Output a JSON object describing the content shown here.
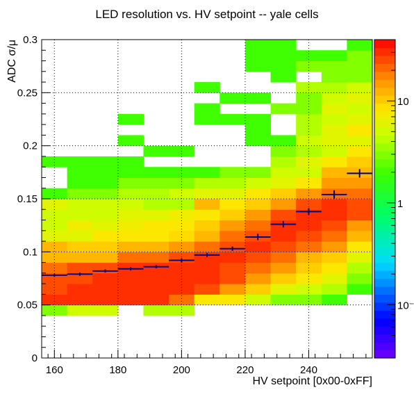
{
  "chart_data": {
    "type": "heatmap",
    "title": "LED resolution vs. HV setpoint -- yale cells",
    "xlabel": "HV setpoint [0x00-0xFF]",
    "ylabel": "ADC σ/μ",
    "xlim": [
      156,
      260
    ],
    "ylim": [
      0,
      0.3
    ],
    "x_ticks": [
      160,
      180,
      200,
      220,
      240
    ],
    "y_ticks": [
      0,
      0.05,
      0.1,
      0.15,
      0.2,
      0.25,
      0.3
    ],
    "grid": true,
    "colorbar": {
      "scale": "log",
      "range": [
        0.03,
        40
      ],
      "tick_labels": [
        "10⁻¹",
        "1",
        "10"
      ],
      "tick_values": [
        0.1,
        1,
        10
      ]
    },
    "bin_x_edges": [
      156,
      164,
      172,
      180,
      188,
      196,
      204,
      212,
      220,
      228,
      236,
      244,
      252,
      260
    ],
    "bin_y_width": 0.01,
    "cells": [
      {
        "col": 0,
        "cells": [
          [
            4,
            3
          ],
          [
            5,
            30
          ],
          [
            6,
            25
          ],
          [
            7,
            25
          ],
          [
            8,
            20
          ],
          [
            9,
            12
          ],
          [
            10,
            12
          ],
          [
            11,
            6
          ],
          [
            12,
            5
          ],
          [
            13,
            5
          ],
          [
            14,
            6
          ],
          [
            15,
            2
          ],
          [
            18,
            2
          ]
        ]
      },
      {
        "col": 1,
        "cells": [
          [
            4,
            5
          ],
          [
            5,
            30
          ],
          [
            6,
            30
          ],
          [
            7,
            25
          ],
          [
            8,
            25
          ],
          [
            9,
            12
          ],
          [
            10,
            10
          ],
          [
            11,
            6
          ],
          [
            12,
            7
          ],
          [
            13,
            5
          ],
          [
            14,
            5
          ],
          [
            15,
            3
          ],
          [
            16,
            2
          ],
          [
            17,
            2
          ],
          [
            18,
            2
          ]
        ]
      },
      {
        "col": 2,
        "cells": [
          [
            4,
            5
          ],
          [
            5,
            30
          ],
          [
            6,
            30
          ],
          [
            7,
            30
          ],
          [
            8,
            25
          ],
          [
            9,
            12
          ],
          [
            10,
            10
          ],
          [
            11,
            8
          ],
          [
            12,
            6
          ],
          [
            13,
            5
          ],
          [
            14,
            5
          ],
          [
            15,
            3
          ],
          [
            16,
            2
          ],
          [
            17,
            2
          ],
          [
            18,
            2
          ]
        ]
      },
      {
        "col": 3,
        "cells": [
          [
            5,
            30
          ],
          [
            6,
            30
          ],
          [
            7,
            30
          ],
          [
            8,
            30
          ],
          [
            9,
            20
          ],
          [
            10,
            12
          ],
          [
            11,
            8
          ],
          [
            12,
            7
          ],
          [
            13,
            6
          ],
          [
            14,
            5
          ],
          [
            15,
            4
          ],
          [
            16,
            3
          ],
          [
            17,
            2
          ],
          [
            18,
            2
          ],
          [
            20,
            2
          ],
          [
            22,
            2
          ]
        ]
      },
      {
        "col": 4,
        "cells": [
          [
            4,
            4
          ],
          [
            5,
            30
          ],
          [
            6,
            30
          ],
          [
            7,
            30
          ],
          [
            8,
            30
          ],
          [
            9,
            20
          ],
          [
            10,
            12
          ],
          [
            11,
            8
          ],
          [
            12,
            8
          ],
          [
            13,
            6
          ],
          [
            14,
            4
          ],
          [
            15,
            4
          ],
          [
            16,
            3
          ],
          [
            17,
            2
          ],
          [
            19,
            2
          ]
        ]
      },
      {
        "col": 5,
        "cells": [
          [
            4,
            4
          ],
          [
            5,
            20
          ],
          [
            6,
            30
          ],
          [
            7,
            30
          ],
          [
            8,
            30
          ],
          [
            9,
            25
          ],
          [
            10,
            15
          ],
          [
            11,
            9
          ],
          [
            12,
            8
          ],
          [
            13,
            7
          ],
          [
            14,
            4
          ],
          [
            15,
            5
          ],
          [
            16,
            3
          ],
          [
            17,
            2
          ],
          [
            19,
            2
          ]
        ]
      },
      {
        "col": 6,
        "cells": [
          [
            5,
            8
          ],
          [
            6,
            25
          ],
          [
            7,
            30
          ],
          [
            8,
            30
          ],
          [
            9,
            30
          ],
          [
            10,
            20
          ],
          [
            11,
            12
          ],
          [
            12,
            10
          ],
          [
            13,
            8
          ],
          [
            14,
            12
          ],
          [
            15,
            6
          ],
          [
            16,
            4
          ],
          [
            17,
            2
          ],
          [
            22,
            2
          ],
          [
            23,
            2
          ],
          [
            25,
            2
          ]
        ]
      },
      {
        "col": 7,
        "cells": [
          [
            5,
            8
          ],
          [
            6,
            15
          ],
          [
            7,
            25
          ],
          [
            8,
            25
          ],
          [
            9,
            30
          ],
          [
            10,
            25
          ],
          [
            11,
            20
          ],
          [
            12,
            15
          ],
          [
            13,
            10
          ],
          [
            14,
            8
          ],
          [
            15,
            6
          ],
          [
            16,
            4
          ],
          [
            17,
            3
          ],
          [
            22,
            2
          ],
          [
            24,
            2
          ]
        ]
      },
      {
        "col": 8,
        "cells": [
          [
            5,
            5
          ],
          [
            6,
            10
          ],
          [
            7,
            15
          ],
          [
            8,
            20
          ],
          [
            9,
            25
          ],
          [
            10,
            30
          ],
          [
            11,
            25
          ],
          [
            12,
            20
          ],
          [
            13,
            15
          ],
          [
            14,
            10
          ],
          [
            15,
            8
          ],
          [
            16,
            5
          ],
          [
            17,
            3
          ],
          [
            20,
            2
          ],
          [
            21,
            2
          ],
          [
            22,
            2
          ],
          [
            24,
            2
          ],
          [
            27,
            2
          ],
          [
            28,
            2
          ],
          [
            29,
            2
          ]
        ]
      },
      {
        "col": 9,
        "cells": [
          [
            5,
            3
          ],
          [
            6,
            6
          ],
          [
            7,
            10
          ],
          [
            8,
            15
          ],
          [
            9,
            20
          ],
          [
            10,
            25
          ],
          [
            11,
            30
          ],
          [
            12,
            30
          ],
          [
            13,
            25
          ],
          [
            14,
            15
          ],
          [
            15,
            10
          ],
          [
            16,
            6
          ],
          [
            17,
            5
          ],
          [
            18,
            4
          ],
          [
            19,
            3
          ],
          [
            20,
            2
          ],
          [
            23,
            3
          ],
          [
            26,
            2
          ],
          [
            27,
            2
          ],
          [
            28,
            2
          ],
          [
            29,
            2
          ]
        ]
      },
      {
        "col": 10,
        "cells": [
          [
            5,
            3
          ],
          [
            6,
            5
          ],
          [
            7,
            8
          ],
          [
            8,
            10
          ],
          [
            9,
            12
          ],
          [
            10,
            20
          ],
          [
            11,
            25
          ],
          [
            12,
            30
          ],
          [
            13,
            30
          ],
          [
            14,
            25
          ],
          [
            15,
            15
          ],
          [
            16,
            8
          ],
          [
            17,
            5
          ],
          [
            18,
            6
          ],
          [
            19,
            4
          ],
          [
            20,
            5
          ],
          [
            21,
            4
          ],
          [
            22,
            4
          ],
          [
            23,
            3
          ],
          [
            24,
            3
          ],
          [
            25,
            4
          ],
          [
            27,
            3
          ],
          [
            28,
            2
          ]
        ]
      },
      {
        "col": 11,
        "cells": [
          [
            5,
            2
          ],
          [
            6,
            4
          ],
          [
            7,
            6
          ],
          [
            8,
            8
          ],
          [
            9,
            10
          ],
          [
            10,
            15
          ],
          [
            11,
            20
          ],
          [
            12,
            25
          ],
          [
            13,
            30
          ],
          [
            14,
            30
          ],
          [
            15,
            20
          ],
          [
            16,
            15
          ],
          [
            17,
            12
          ],
          [
            18,
            8
          ],
          [
            19,
            5
          ],
          [
            20,
            6
          ],
          [
            21,
            6
          ],
          [
            22,
            5
          ],
          [
            23,
            6
          ],
          [
            24,
            5
          ],
          [
            25,
            4
          ],
          [
            26,
            3
          ],
          [
            27,
            3
          ],
          [
            28,
            2
          ]
        ]
      },
      {
        "col": 12,
        "cells": [
          [
            6,
            2
          ],
          [
            7,
            3
          ],
          [
            8,
            4
          ],
          [
            9,
            6
          ],
          [
            10,
            8
          ],
          [
            11,
            12
          ],
          [
            12,
            15
          ],
          [
            13,
            25
          ],
          [
            14,
            25
          ],
          [
            15,
            20
          ],
          [
            16,
            15
          ],
          [
            17,
            12
          ],
          [
            18,
            10
          ],
          [
            19,
            8
          ],
          [
            20,
            6
          ],
          [
            21,
            8
          ],
          [
            22,
            6
          ],
          [
            23,
            5
          ],
          [
            24,
            6
          ],
          [
            25,
            5
          ],
          [
            26,
            3
          ],
          [
            27,
            3
          ],
          [
            28,
            3
          ],
          [
            29,
            2
          ]
        ]
      }
    ],
    "profile": {
      "name": "mean",
      "x": [
        160,
        168,
        176,
        184,
        192,
        200,
        208,
        216,
        224,
        232,
        240,
        248,
        256
      ],
      "y": [
        0.078,
        0.079,
        0.082,
        0.084,
        0.086,
        0.092,
        0.097,
        0.103,
        0.114,
        0.126,
        0.138,
        0.154,
        0.174
      ],
      "err": [
        0.0015,
        0.0015,
        0.0015,
        0.0015,
        0.0015,
        0.002,
        0.002,
        0.002,
        0.003,
        0.003,
        0.003,
        0.004,
        0.004
      ]
    }
  }
}
